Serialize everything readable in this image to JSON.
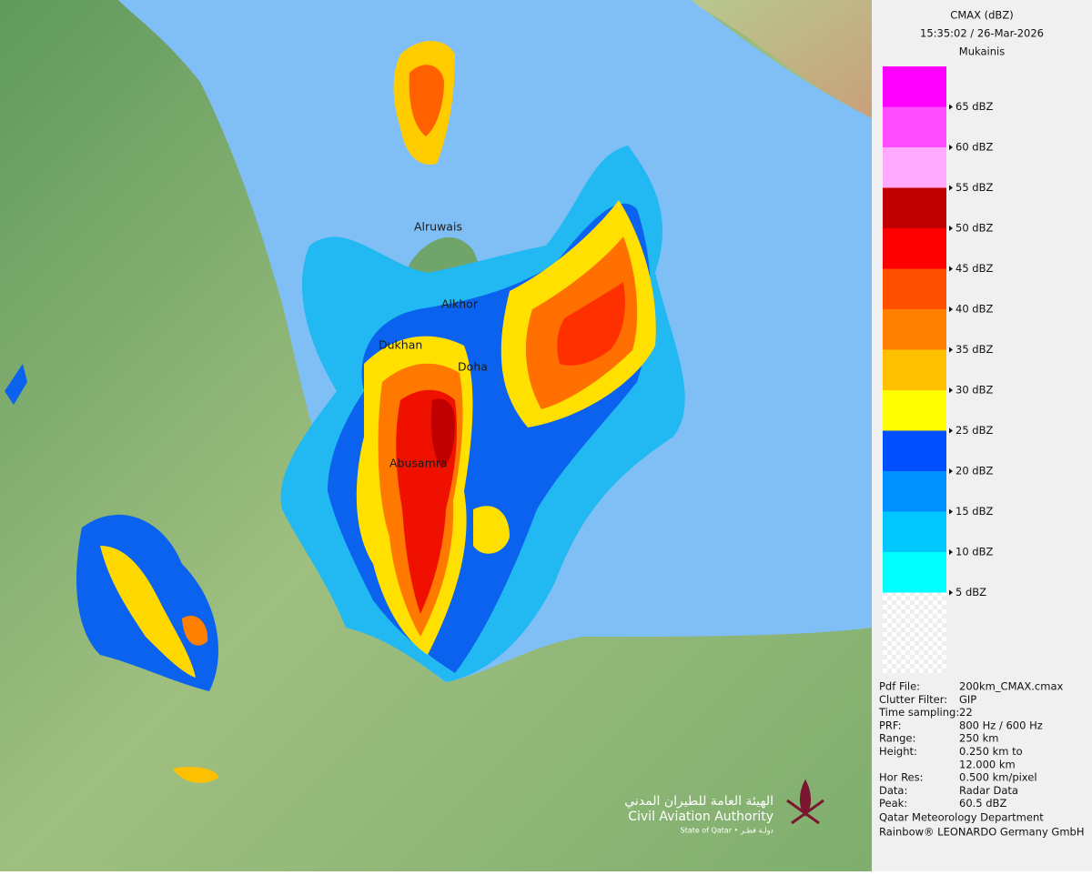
{
  "header": {
    "title": "CMAX (dBZ)",
    "time": "15:35:02 / 26-Mar-2026",
    "station": "Mukainis"
  },
  "legend": {
    "colors": [
      "#ff00ff",
      "#ff4dff",
      "#ffaaff",
      "#c00000",
      "#ff0000",
      "#ff5000",
      "#ff8000",
      "#ffc000",
      "#ffff00",
      "#0050ff",
      "#0090ff",
      "#00c8ff",
      "#00ffff",
      "#ffffff"
    ],
    "labels": [
      "65 dBZ",
      "60 dBZ",
      "55 dBZ",
      "50 dBZ",
      "45 dBZ",
      "40 dBZ",
      "35 dBZ",
      "30 dBZ",
      "25 dBZ",
      "20 dBZ",
      "15 dBZ",
      "10 dBZ",
      "5 dBZ"
    ]
  },
  "info": [
    {
      "label": "Pdf File:",
      "value": [
        "200km_CMAX.cmax"
      ]
    },
    {
      "label": "Clutter Filter:",
      "value": [
        "GIP"
      ]
    },
    {
      "label": "Time sampling:",
      "value": [
        "22"
      ]
    },
    {
      "label": "PRF:",
      "value": [
        "800 Hz / 600 Hz"
      ]
    },
    {
      "label": "Range:",
      "value": [
        "250 km"
      ]
    },
    {
      "label": "Height:",
      "value": [
        "0.250 km to",
        "12.000 km"
      ]
    },
    {
      "label": "Hor Res:",
      "value": [
        "0.500 km/pixel"
      ]
    },
    {
      "label": "Data:",
      "value": [
        "Radar Data"
      ]
    },
    {
      "label": "Peak:",
      "value": [
        "60.5 dBZ"
      ]
    }
  ],
  "footer": [
    "Qatar Meteorology Department",
    "Rainbow® LEONARDO Germany GmbH"
  ],
  "places": [
    "Alruwais",
    "Alkhor",
    "Dukhan",
    "Doha",
    "Abusamra"
  ],
  "logo": {
    "arabic": "الهيئة العامة للطيران المدني",
    "english": "Civil Aviation Authority",
    "state": "State of Qatar • دولـة قطـر"
  }
}
